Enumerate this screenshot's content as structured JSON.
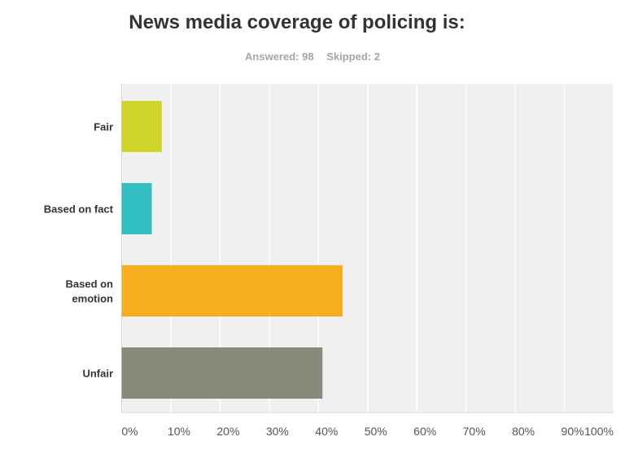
{
  "chart_data": {
    "type": "bar",
    "orientation": "horizontal",
    "title": "News media coverage of policing is:",
    "answered_label": "Answered: 98",
    "skipped_label": "Skipped: 2",
    "categories": [
      "Fair",
      "Based on fact",
      "Based on emotion",
      "Unfair"
    ],
    "category_lines": [
      [
        "Fair"
      ],
      [
        "Based on fact"
      ],
      [
        "Based on",
        "emotion"
      ],
      [
        "Unfair"
      ]
    ],
    "values": [
      8.16,
      6.12,
      44.9,
      40.82
    ],
    "colors": [
      "#cfd52a",
      "#33bfc1",
      "#f6ad1e",
      "#898a7a"
    ],
    "xlim": [
      0,
      100
    ],
    "xticks": [
      "0%",
      "10%",
      "20%",
      "30%",
      "40%",
      "50%",
      "60%",
      "70%",
      "80%",
      "90%",
      "100%"
    ],
    "grid": true,
    "plot_background": "#f0f0f0",
    "legend": "none"
  }
}
